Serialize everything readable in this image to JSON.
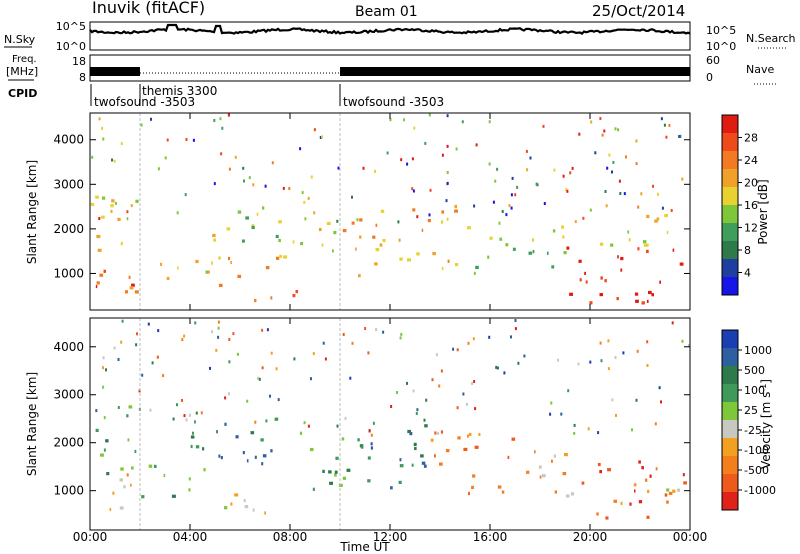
{
  "header": {
    "station": "Inuvik (fitACF)",
    "beam": "Beam 01",
    "date": "25/Oct/2014"
  },
  "side_labels": {
    "n_sky": "N.Sky",
    "freq": "Freq.",
    "freq_unit": "[MHz]",
    "cpid": "CPID",
    "n_search": "N.Search",
    "nave": "Nave"
  },
  "time_axis": {
    "label": "Time UT",
    "ticks": [
      "00:00",
      "04:00",
      "08:00",
      "12:00",
      "16:00",
      "20:00",
      "00:00"
    ],
    "hours": [
      0,
      4,
      8,
      12,
      16,
      20,
      24
    ]
  },
  "noise_panel": {
    "left_ticks": [
      "10^5",
      "10^0"
    ],
    "right_ticks": [
      "10^5",
      "10^0"
    ]
  },
  "freq_panel": {
    "left_ticks": [
      "18",
      "8"
    ],
    "right_ticks": [
      "60",
      "0"
    ]
  },
  "cpid": [
    {
      "label": "twofsound -3503",
      "start_hour": 0,
      "end_hour": 2
    },
    {
      "label": "themis 3300",
      "start_hour": 2,
      "end_hour": 10
    },
    {
      "label": "twofsound -3503",
      "start_hour": 10,
      "end_hour": 24
    }
  ],
  "range_axis": {
    "label": "Slant Range [km]",
    "ticks": [
      "1000",
      "2000",
      "3000",
      "4000"
    ],
    "values": [
      1000,
      2000,
      3000,
      4000
    ],
    "range_min": 180,
    "range_max": 4600
  },
  "colors": {
    "power": [
      "#1515e8",
      "#1f3fa0",
      "#2f7a4a",
      "#3e9e5a",
      "#7ec63a",
      "#e8d230",
      "#f0a12a",
      "#f27a22",
      "#ee4a1c",
      "#e01b12"
    ],
    "velocity": [
      "#1a3fb0",
      "#2e5fa0",
      "#2f7a4a",
      "#3f9a5a",
      "#7ec63a",
      "#c8c8c0",
      "#f2a020",
      "#f47d1e",
      "#ee5a1c",
      "#e0231a"
    ]
  },
  "chart_data": [
    {
      "type": "heatmap",
      "name": "power",
      "colorbar_label": "Power [dB]",
      "colorbar_ticks": [
        "4",
        "8",
        "12",
        "16",
        "20",
        "24",
        "28"
      ],
      "colorbar_values": [
        4,
        8,
        12,
        16,
        20,
        24,
        28
      ],
      "xlim": [
        0,
        24
      ],
      "ylim": [
        180,
        4600
      ],
      "regions": [
        {
          "t0": 0.0,
          "t1": 2.0,
          "r0": 400,
          "r1": 1300,
          "lvl": 8
        },
        {
          "t0": 0.0,
          "t1": 2.0,
          "r0": 1300,
          "r1": 2800,
          "lvl": 5
        },
        {
          "t0": 1.5,
          "t1": 3.0,
          "r0": 600,
          "r1": 1200,
          "lvl": 7
        },
        {
          "t0": 3.0,
          "t1": 4.5,
          "r0": 800,
          "r1": 1400,
          "lvl": 6
        },
        {
          "t0": 4.5,
          "t1": 5.5,
          "r0": 900,
          "r1": 2400,
          "lvl": 5
        },
        {
          "t0": 5.0,
          "t1": 8.0,
          "r0": 700,
          "r1": 1500,
          "lvl": 6
        },
        {
          "t0": 5.5,
          "t1": 8.0,
          "r0": 1500,
          "r1": 2500,
          "lvl": 4
        },
        {
          "t0": 6.0,
          "t1": 9.5,
          "r0": 300,
          "r1": 600,
          "lvl": 8
        },
        {
          "t0": 8.0,
          "t1": 10.0,
          "r0": 1200,
          "r1": 2200,
          "lvl": 5
        },
        {
          "t0": 10.0,
          "t1": 12.5,
          "r0": 800,
          "r1": 2400,
          "lvl": 6
        },
        {
          "t0": 12.5,
          "t1": 15.0,
          "r0": 1000,
          "r1": 2500,
          "lvl": 6
        },
        {
          "t0": 15.0,
          "t1": 19.0,
          "r0": 900,
          "r1": 2100,
          "lvl": 4
        },
        {
          "t0": 19.0,
          "t1": 24.0,
          "r0": 300,
          "r1": 1600,
          "lvl": 9
        },
        {
          "t0": 20.0,
          "t1": 24.0,
          "r0": 1600,
          "r1": 2400,
          "lvl": 5
        }
      ]
    },
    {
      "type": "heatmap",
      "name": "velocity",
      "colorbar_label": "Velocity [m s^-1]",
      "colorbar_ticks": [
        "1000",
        "500",
        "100",
        "25",
        "-25",
        "-100",
        "-500",
        "-1000"
      ],
      "colorbar_values": [
        1000,
        500,
        100,
        25,
        -25,
        -100,
        -500,
        -1000
      ],
      "xlim": [
        0,
        24
      ],
      "ylim": [
        180,
        4600
      ],
      "regions": [
        {
          "t0": 0.0,
          "t1": 2.0,
          "r0": 400,
          "r1": 1300,
          "lvl": 6
        },
        {
          "t0": 0.0,
          "t1": 2.0,
          "r0": 1300,
          "r1": 2800,
          "lvl": 3
        },
        {
          "t0": 2.0,
          "t1": 5.0,
          "r0": 800,
          "r1": 1500,
          "lvl": 3
        },
        {
          "t0": 3.0,
          "t1": 8.0,
          "r0": 1500,
          "r1": 2500,
          "lvl": 2
        },
        {
          "t0": 5.0,
          "t1": 9.5,
          "r0": 500,
          "r1": 900,
          "lvl": 5
        },
        {
          "t0": 8.0,
          "t1": 10.5,
          "r0": 1000,
          "r1": 2300,
          "lvl": 3
        },
        {
          "t0": 10.0,
          "t1": 13.5,
          "r0": 900,
          "r1": 2500,
          "lvl": 2
        },
        {
          "t0": 13.5,
          "t1": 17.0,
          "r0": 900,
          "r1": 2200,
          "lvl": 7
        },
        {
          "t0": 17.0,
          "t1": 19.5,
          "r0": 800,
          "r1": 2000,
          "lvl": 6
        },
        {
          "t0": 19.5,
          "t1": 24.0,
          "r0": 400,
          "r1": 1600,
          "lvl": 8
        },
        {
          "t0": 21.0,
          "t1": 24.0,
          "r0": 600,
          "r1": 1100,
          "lvl": 5
        }
      ]
    }
  ]
}
